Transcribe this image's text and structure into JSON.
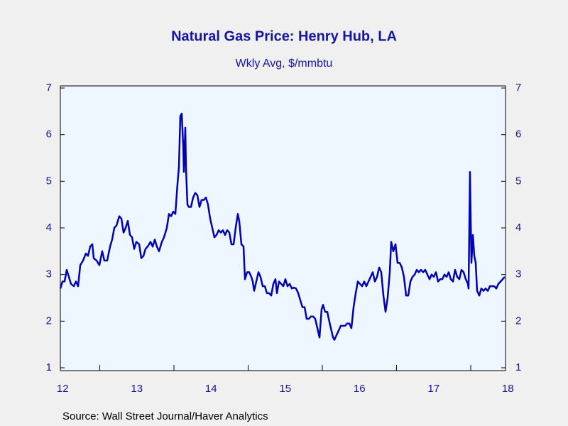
{
  "chart_data": {
    "type": "line",
    "title": "Natural Gas Price: Henry Hub, LA",
    "subtitle": "Wkly Avg, $/mmbtu",
    "source": "Source:  Wall Street Journal/Haver Analytics",
    "color": "#0000b4",
    "xlim": [
      2012.469,
      2018.469
    ],
    "xticks": [
      2013,
      2014,
      2015,
      2016,
      2017,
      2018
    ],
    "xtick_labels": [
      {
        "value": 2012.5,
        "label": "12"
      },
      {
        "value": 2013.5,
        "label": "13"
      },
      {
        "value": 2014.5,
        "label": "14"
      },
      {
        "value": 2015.5,
        "label": "15"
      },
      {
        "value": 2016.5,
        "label": "16"
      },
      {
        "value": 2017.5,
        "label": "17"
      },
      {
        "value": 2018.5,
        "label": "18"
      }
    ],
    "ylim": [
      1,
      7
    ],
    "yticks": [
      1,
      2,
      3,
      4,
      5,
      6,
      7
    ],
    "right_axis": true,
    "x": [
      2012.469,
      2012.498,
      2012.526,
      2012.555,
      2012.584,
      2012.612,
      2012.651,
      2012.679,
      2012.708,
      2012.737,
      2012.775,
      2012.813,
      2012.842,
      2012.871,
      2012.9,
      2012.919,
      2012.957,
      2012.995,
      2013.033,
      2013.062,
      2013.1,
      2013.139,
      2013.167,
      2013.196,
      2013.225,
      2013.263,
      2013.292,
      2013.321,
      2013.349,
      2013.378,
      2013.407,
      2013.435,
      2013.464,
      2013.493,
      2013.531,
      2013.56,
      2013.589,
      2013.617,
      2013.646,
      2013.684,
      2013.713,
      2013.742,
      2013.77,
      2013.799,
      2013.837,
      2013.866,
      2013.904,
      2013.933,
      2013.962,
      2013.99,
      2014.019,
      2014.048,
      2014.067,
      2014.086,
      2014.105,
      2014.124,
      2014.134,
      2014.153,
      2014.163,
      2014.182,
      2014.201,
      2014.23,
      2014.258,
      2014.287,
      2014.316,
      2014.344,
      2014.373,
      2014.402,
      2014.431,
      2014.459,
      2014.488,
      2014.517,
      2014.545,
      2014.574,
      2014.603,
      2014.632,
      2014.66,
      2014.689,
      2014.718,
      2014.746,
      2014.775,
      2014.804,
      2014.832,
      2014.861,
      2014.88,
      2014.909,
      2014.938,
      2014.957,
      2014.986,
      2015.014,
      2015.043,
      2015.062,
      2015.081,
      2015.11,
      2015.139,
      2015.167,
      2015.196,
      2015.225,
      2015.253,
      2015.282,
      2015.311,
      2015.34,
      2015.368,
      2015.388,
      2015.416,
      2015.445,
      2015.474,
      2015.502,
      2015.531,
      2015.56,
      2015.589,
      2015.617,
      2015.646,
      2015.675,
      2015.703,
      2015.732,
      2015.761,
      2015.789,
      2015.818,
      2015.847,
      2015.876,
      2015.904,
      2015.933,
      2015.962,
      2015.99,
      2016.009,
      2016.038,
      2016.067,
      2016.086,
      2016.115,
      2016.144,
      2016.163,
      2016.191,
      2016.22,
      2016.249,
      2016.278,
      2016.306,
      2016.335,
      2016.364,
      2016.392,
      2016.421,
      2016.45,
      2016.478,
      2016.507,
      2016.536,
      2016.565,
      2016.593,
      2016.622,
      2016.651,
      2016.679,
      2016.708,
      2016.737,
      2016.766,
      2016.794,
      2016.823,
      2016.852,
      2016.88,
      2016.909,
      2016.928,
      2016.957,
      2016.986,
      2017.014,
      2017.043,
      2017.072,
      2017.1,
      2017.129,
      2017.158,
      2017.187,
      2017.215,
      2017.244,
      2017.273,
      2017.301,
      2017.33,
      2017.359,
      2017.387,
      2017.416,
      2017.445,
      2017.474,
      2017.502,
      2017.531,
      2017.56,
      2017.589,
      2017.617,
      2017.646,
      2017.675,
      2017.703,
      2017.732,
      2017.761,
      2017.789,
      2017.818,
      2017.847,
      2017.875,
      2017.904,
      2017.933,
      2017.962,
      2017.971,
      2017.99,
      2018.009,
      2018.029,
      2018.048,
      2018.067,
      2018.086,
      2018.115,
      2018.143,
      2018.172,
      2018.201,
      2018.23,
      2018.258,
      2018.287,
      2018.316,
      2018.345,
      2018.373,
      2018.402,
      2018.431,
      2018.459
    ],
    "values": [
      2.7,
      2.85,
      2.85,
      3.1,
      2.95,
      2.8,
      2.75,
      2.85,
      2.75,
      3.2,
      3.3,
      3.45,
      3.4,
      3.6,
      3.65,
      3.35,
      3.3,
      3.2,
      3.5,
      3.3,
      3.3,
      3.6,
      3.75,
      4.0,
      4.05,
      4.25,
      4.2,
      3.9,
      4.0,
      4.15,
      3.85,
      3.8,
      3.55,
      3.7,
      3.65,
      3.35,
      3.4,
      3.55,
      3.6,
      3.7,
      3.6,
      3.75,
      3.6,
      3.5,
      3.7,
      3.8,
      4.0,
      4.3,
      4.25,
      4.35,
      4.3,
      4.95,
      5.3,
      6.4,
      6.45,
      5.8,
      5.2,
      6.15,
      5.25,
      4.5,
      4.45,
      4.45,
      4.65,
      4.75,
      4.7,
      4.45,
      4.6,
      4.6,
      4.65,
      4.5,
      4.2,
      4.0,
      3.8,
      3.85,
      3.95,
      3.9,
      3.95,
      3.85,
      3.95,
      3.9,
      3.65,
      3.65,
      4.0,
      4.3,
      4.15,
      3.65,
      3.6,
      2.9,
      3.05,
      3.05,
      2.95,
      2.85,
      2.65,
      2.85,
      3.05,
      2.95,
      2.75,
      2.75,
      2.6,
      2.6,
      2.55,
      2.8,
      2.9,
      2.6,
      2.85,
      2.8,
      2.75,
      2.9,
      2.75,
      2.8,
      2.7,
      2.72,
      2.7,
      2.6,
      2.45,
      2.3,
      2.3,
      2.05,
      2.05,
      2.1,
      2.1,
      2.05,
      1.85,
      1.65,
      2.25,
      2.35,
      2.2,
      2.2,
      2.05,
      1.85,
      1.65,
      1.6,
      1.7,
      1.8,
      1.9,
      1.9,
      1.9,
      1.95,
      1.95,
      1.85,
      2.3,
      2.6,
      2.85,
      2.8,
      2.75,
      2.85,
      2.75,
      2.85,
      2.95,
      3.05,
      2.85,
      2.95,
      3.15,
      3.05,
      2.55,
      2.2,
      2.5,
      3.05,
      3.7,
      3.5,
      3.65,
      3.25,
      3.25,
      3.15,
      2.95,
      2.55,
      2.55,
      2.85,
      2.95,
      3.0,
      3.1,
      3.05,
      3.1,
      3.05,
      3.1,
      3.0,
      2.9,
      3.0,
      2.95,
      3.05,
      2.85,
      2.9,
      2.9,
      3.0,
      2.95,
      3.05,
      2.9,
      2.85,
      3.1,
      2.95,
      2.9,
      3.1,
      3.05,
      2.9,
      2.8,
      2.7,
      5.2,
      3.25,
      3.85,
      3.4,
      3.25,
      2.65,
      2.55,
      2.7,
      2.65,
      2.7,
      2.65,
      2.75,
      2.75,
      2.75,
      2.7,
      2.8,
      2.85,
      2.9,
      2.95
    ]
  }
}
